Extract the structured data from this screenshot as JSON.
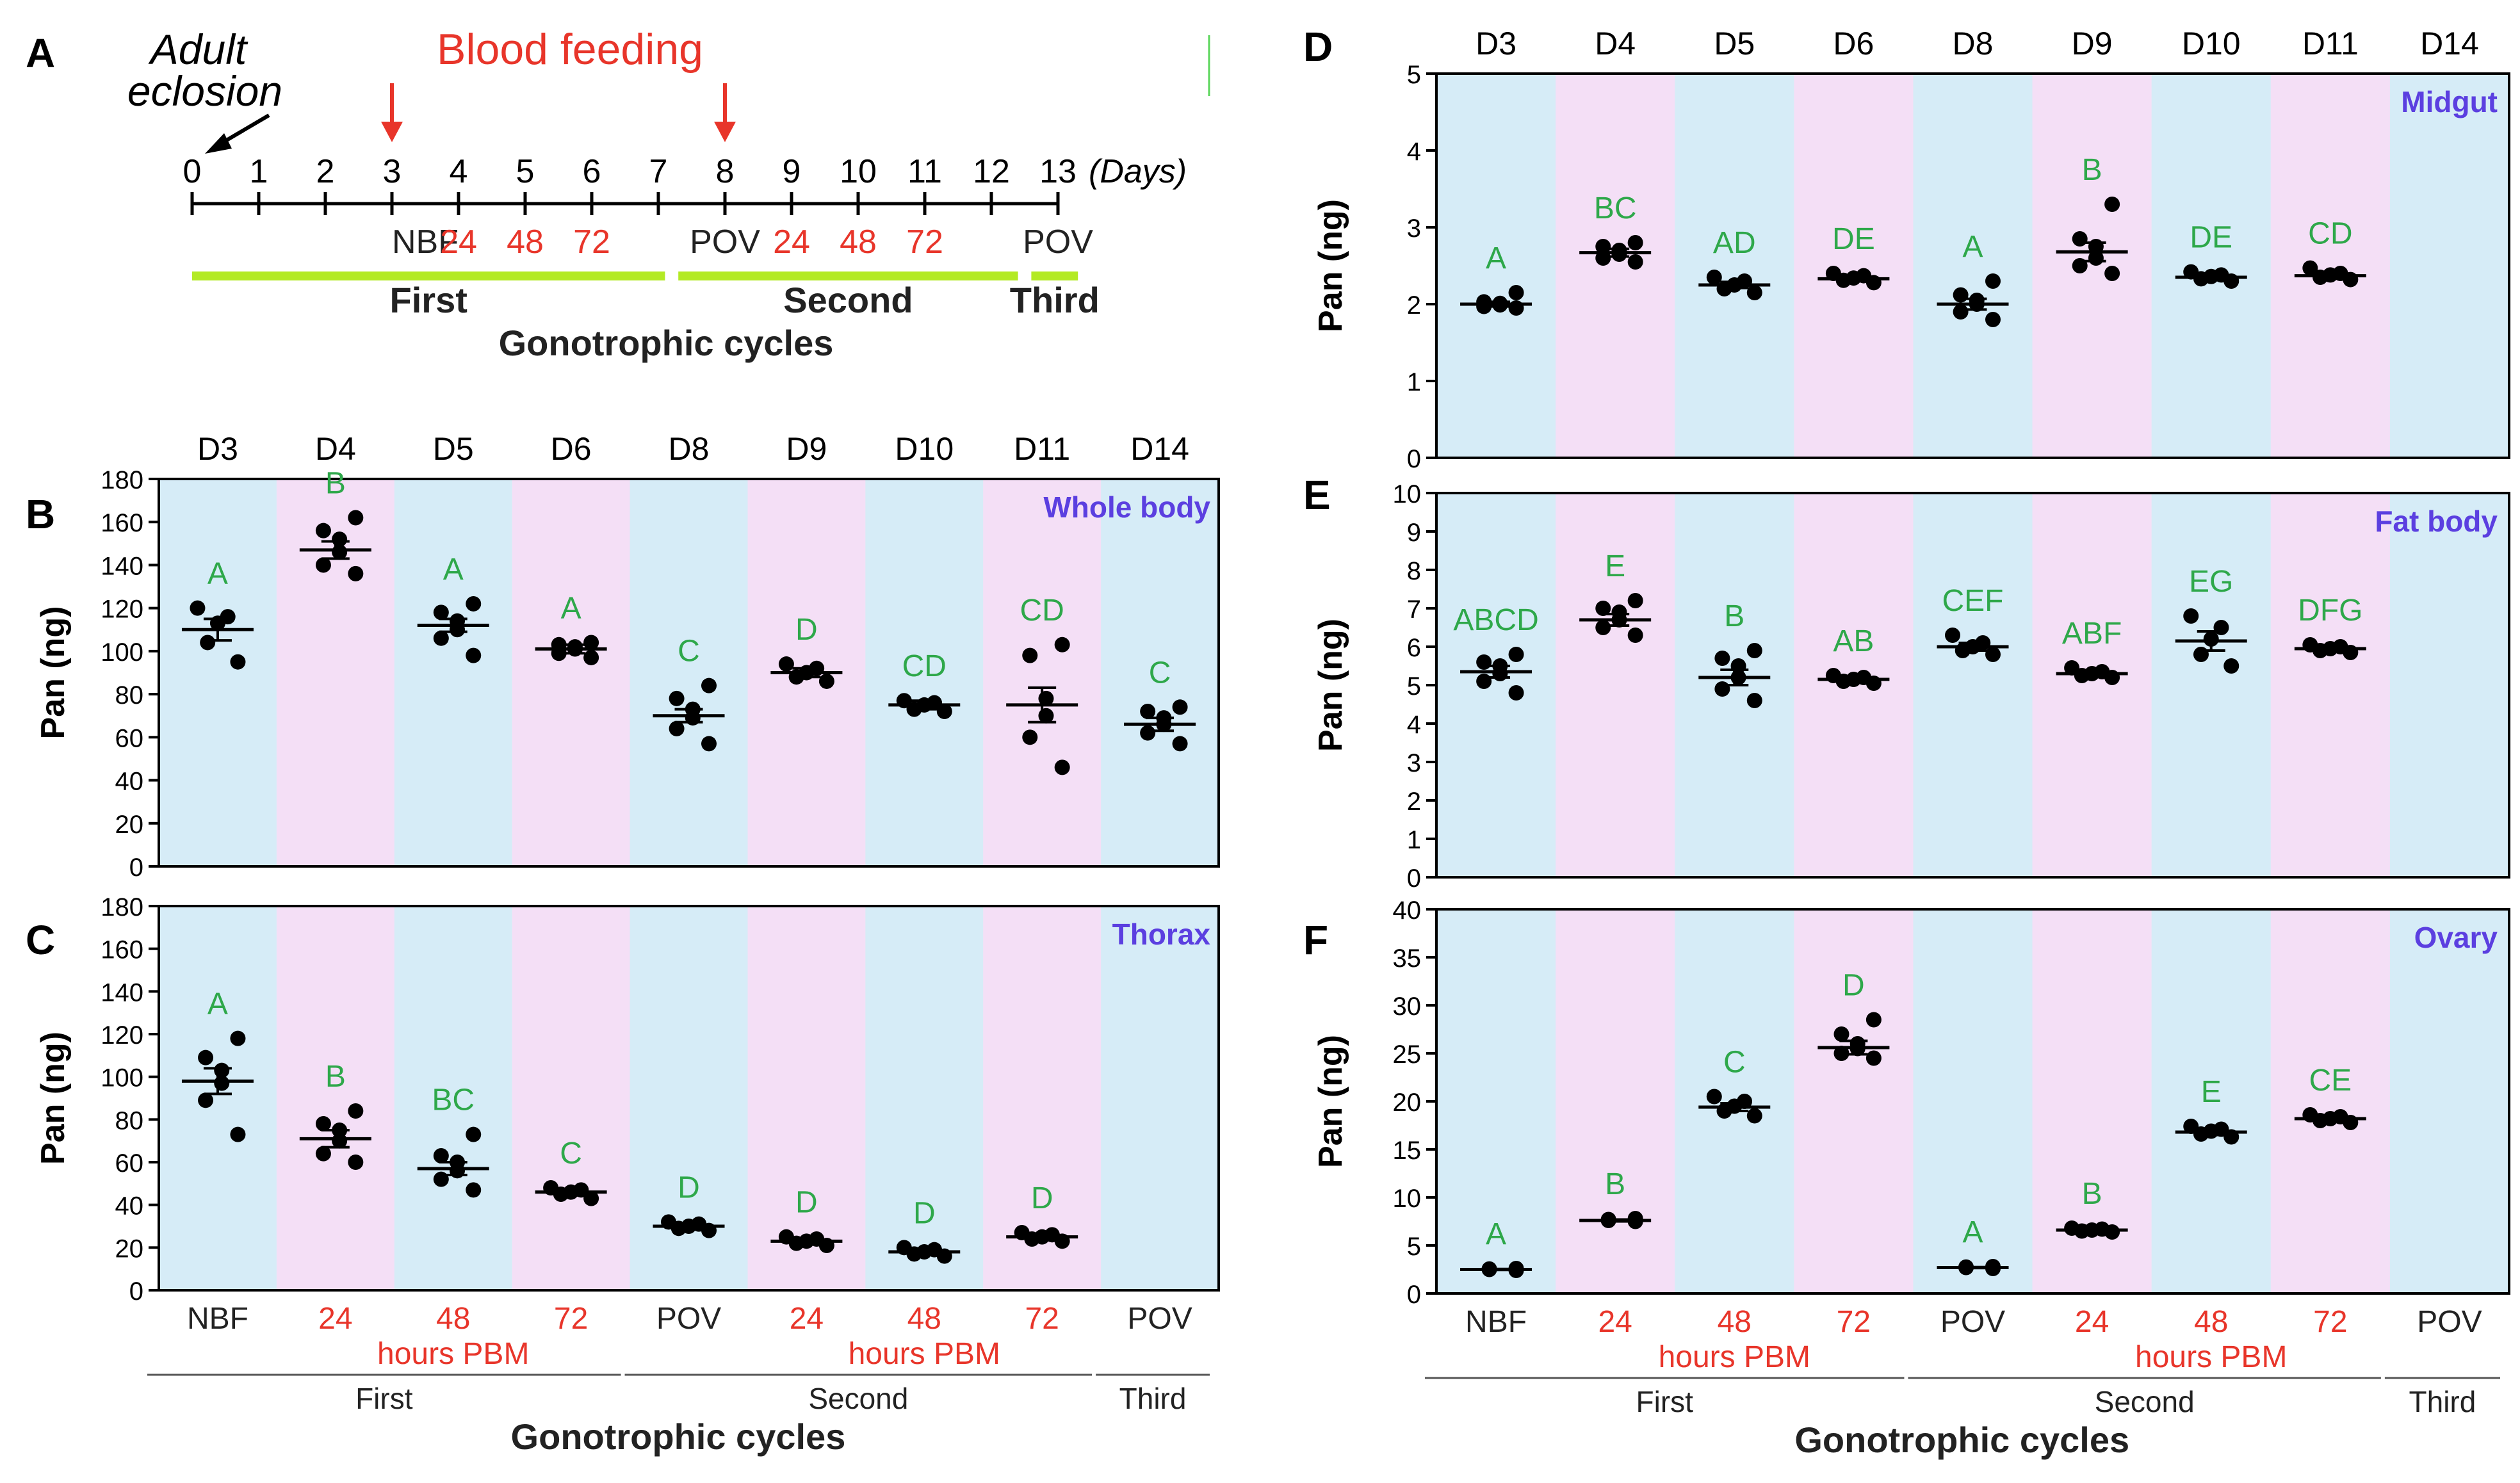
{
  "colors": {
    "blue_band": "#d6ecf7",
    "pink_band": "#f4dff6",
    "green_letter": "#2ea84a",
    "red": "#e8352a",
    "title": "#5b3fe0",
    "green_bar": "#b3ea24"
  },
  "timeline": {
    "letter": "A",
    "adult": "Adult",
    "eclosion": "eclosion",
    "blood_feeding": "Blood feeding",
    "days_label": "(Days)",
    "day_ticks": [
      "0",
      "1",
      "2",
      "3",
      "4",
      "5",
      "6",
      "7",
      "8",
      "9",
      "10",
      "11",
      "12",
      "13"
    ],
    "feeding_days": [
      3,
      8
    ],
    "stages": [
      {
        "label": "NBF",
        "day": 3.5,
        "red": false
      },
      {
        "label": "24",
        "day": 4,
        "red": true
      },
      {
        "label": "48",
        "day": 5,
        "red": true
      },
      {
        "label": "72",
        "day": 6,
        "red": true
      },
      {
        "label": "POV",
        "day": 8,
        "red": false
      },
      {
        "label": "24",
        "day": 9,
        "red": true
      },
      {
        "label": "48",
        "day": 10,
        "red": true
      },
      {
        "label": "72",
        "day": 11,
        "red": true
      },
      {
        "label": "POV",
        "day": 13,
        "red": false
      }
    ],
    "cycles": [
      {
        "label": "First",
        "from": 0,
        "to": 7.1
      },
      {
        "label": "Second",
        "from": 7.3,
        "to": 12.4
      },
      {
        "label": "Third",
        "from": 12.6,
        "to": 13.3
      }
    ],
    "xlabel": "Gonotrophic cycles"
  },
  "day_labels": [
    "D3",
    "D4",
    "D5",
    "D6",
    "D8",
    "D9",
    "D10",
    "D11",
    "D14"
  ],
  "x_categories": [
    {
      "label": "NBF",
      "red": false
    },
    {
      "label": "24",
      "red": true
    },
    {
      "label": "48",
      "red": true
    },
    {
      "label": "72",
      "red": true
    },
    {
      "label": "POV",
      "red": false
    },
    {
      "label": "24",
      "red": true
    },
    {
      "label": "48",
      "red": true
    },
    {
      "label": "72",
      "red": true
    },
    {
      "label": "POV",
      "red": false
    }
  ],
  "hours_pbm": "hours PBM",
  "cycle_labels": [
    "First",
    "Second",
    "Third"
  ],
  "xlabel": "Gonotrophic cycles",
  "chart_data": [
    {
      "panel": "B",
      "type": "scatter",
      "title": "Whole body",
      "ylabel": "Pan (ng)",
      "ylim": [
        0,
        180
      ],
      "yticks": [
        0,
        20,
        40,
        60,
        80,
        100,
        120,
        140,
        160,
        180
      ],
      "means": [
        110,
        147,
        112,
        101,
        70,
        90,
        75,
        75,
        66
      ],
      "sem": [
        5,
        4,
        3,
        2,
        3,
        2,
        2,
        8,
        3
      ],
      "points": [
        [
          95,
          104,
          113,
          116,
          120
        ],
        [
          136,
          140,
          146,
          152,
          156,
          162
        ],
        [
          98,
          106,
          110,
          114,
          118,
          122
        ],
        [
          97,
          99,
          101,
          102,
          103,
          104
        ],
        [
          57,
          64,
          69,
          73,
          78,
          84
        ],
        [
          86,
          88,
          90,
          92,
          94
        ],
        [
          72,
          73,
          75,
          76,
          77
        ],
        [
          46,
          60,
          70,
          78,
          98,
          103
        ],
        [
          57,
          62,
          66,
          69,
          72,
          74
        ]
      ],
      "letters": [
        "A",
        "B",
        "A",
        "A",
        "C",
        "D",
        "CD",
        "CD",
        "C"
      ]
    },
    {
      "panel": "C",
      "type": "scatter",
      "title": "Thorax",
      "ylabel": "Pan (ng)",
      "ylim": [
        0,
        180
      ],
      "yticks": [
        0,
        20,
        40,
        60,
        80,
        100,
        120,
        140,
        160,
        180
      ],
      "means": [
        98,
        71,
        57,
        46,
        30,
        23,
        18,
        25,
        null
      ],
      "sem": [
        6,
        4,
        3,
        1.5,
        1,
        1,
        1,
        1,
        null
      ],
      "points": [
        [
          73,
          89,
          97,
          103,
          109,
          118
        ],
        [
          60,
          64,
          70,
          75,
          78,
          84
        ],
        [
          47,
          52,
          56,
          60,
          63,
          73
        ],
        [
          43,
          45,
          46,
          47,
          48
        ],
        [
          28,
          29,
          30,
          31,
          32
        ],
        [
          21,
          22,
          23,
          24,
          25
        ],
        [
          16,
          17,
          18,
          19,
          20
        ],
        [
          23,
          24,
          25,
          26,
          27
        ],
        []
      ],
      "letters": [
        "A",
        "B",
        "BC",
        "C",
        "D",
        "D",
        "D",
        "D",
        ""
      ]
    },
    {
      "panel": "D",
      "type": "scatter",
      "title": "Midgut",
      "ylabel": "Pan (ng)",
      "ylim": [
        0,
        5
      ],
      "yticks": [
        0,
        1,
        2,
        3,
        4,
        5
      ],
      "means": [
        2.0,
        2.67,
        2.25,
        2.33,
        2.0,
        2.68,
        2.35,
        2.37,
        null
      ],
      "sem": [
        0.03,
        0.05,
        0.04,
        0.03,
        0.07,
        0.12,
        0.03,
        0.03,
        null
      ],
      "points": [
        [
          1.95,
          1.97,
          1.99,
          2.01,
          2.03,
          2.15
        ],
        [
          2.55,
          2.6,
          2.65,
          2.7,
          2.75,
          2.8
        ],
        [
          2.15,
          2.2,
          2.25,
          2.3,
          2.35
        ],
        [
          2.28,
          2.31,
          2.34,
          2.37,
          2.4
        ],
        [
          1.8,
          1.9,
          2.0,
          2.05,
          2.12,
          2.3
        ],
        [
          2.4,
          2.5,
          2.6,
          2.75,
          2.85,
          3.3
        ],
        [
          2.3,
          2.33,
          2.36,
          2.38,
          2.42
        ],
        [
          2.32,
          2.35,
          2.38,
          2.4,
          2.47
        ],
        []
      ],
      "letters": [
        "A",
        "BC",
        "AD",
        "DE",
        "A",
        "B",
        "DE",
        "CD",
        ""
      ]
    },
    {
      "panel": "E",
      "type": "scatter",
      "title": "Fat body",
      "ylabel": "Pan (ng)",
      "ylim": [
        0,
        10
      ],
      "yticks": [
        0,
        1,
        2,
        3,
        4,
        5,
        6,
        7,
        8,
        9,
        10
      ],
      "means": [
        5.35,
        6.7,
        5.2,
        5.15,
        6.0,
        5.3,
        6.15,
        5.95,
        null
      ],
      "sem": [
        0.15,
        0.15,
        0.2,
        0.05,
        0.1,
        0.07,
        0.25,
        0.05,
        null
      ],
      "points": [
        [
          4.8,
          5.1,
          5.3,
          5.5,
          5.6,
          5.8
        ],
        [
          6.3,
          6.5,
          6.7,
          6.9,
          7.0,
          7.2
        ],
        [
          4.6,
          4.9,
          5.2,
          5.5,
          5.7,
          5.9
        ],
        [
          5.05,
          5.1,
          5.15,
          5.2,
          5.25
        ],
        [
          5.8,
          5.9,
          6.0,
          6.1,
          6.3
        ],
        [
          5.2,
          5.25,
          5.3,
          5.35,
          5.45
        ],
        [
          5.5,
          5.8,
          6.2,
          6.5,
          6.8
        ],
        [
          5.85,
          5.9,
          5.95,
          6.0,
          6.05
        ],
        []
      ],
      "letters": [
        "ABCD",
        "E",
        "B",
        "AB",
        "CEF",
        "ABF",
        "EG",
        "DFG",
        ""
      ]
    },
    {
      "panel": "F",
      "type": "scatter",
      "title": "Ovary",
      "ylabel": "Pan (ng)",
      "ylim": [
        0,
        40
      ],
      "yticks": [
        0,
        5,
        10,
        15,
        20,
        25,
        30,
        35,
        40
      ],
      "means": [
        2.5,
        7.6,
        19.4,
        25.6,
        2.7,
        6.6,
        16.8,
        18.2,
        null
      ],
      "sem": [
        0.05,
        0.1,
        0.4,
        0.7,
        0.05,
        0.1,
        0.3,
        0.2,
        null
      ],
      "points": [
        [
          2.4,
          2.5,
          2.55,
          2.6
        ],
        [
          7.5,
          7.6,
          7.7,
          7.8
        ],
        [
          18.5,
          19.0,
          19.5,
          20.0,
          20.5
        ],
        [
          24.5,
          25.0,
          25.5,
          26.0,
          27.0,
          28.5
        ],
        [
          2.6,
          2.7,
          2.75,
          2.8
        ],
        [
          6.4,
          6.5,
          6.6,
          6.7,
          6.8
        ],
        [
          16.3,
          16.6,
          16.9,
          17.1,
          17.4
        ],
        [
          17.8,
          18.0,
          18.2,
          18.4,
          18.6
        ],
        []
      ],
      "letters": [
        "A",
        "B",
        "C",
        "D",
        "A",
        "B",
        "E",
        "CE",
        ""
      ]
    }
  ]
}
